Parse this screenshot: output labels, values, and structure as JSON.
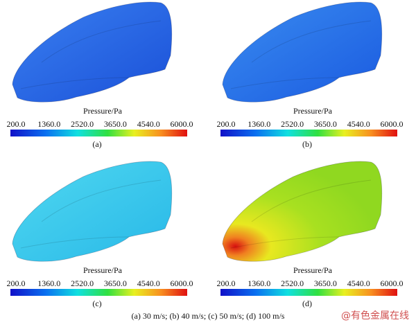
{
  "panels": [
    {
      "label": "(a)",
      "colorbar": {
        "title": "Pressure/Pa",
        "ticks": [
          "200.0",
          "1360.0",
          "2520.0",
          "3650.0",
          "4540.0",
          "6000.0"
        ]
      }
    },
    {
      "label": "(b)",
      "colorbar": {
        "title": "Pressure/Pa",
        "ticks": [
          "200.0",
          "1360.0",
          "2520.0",
          "3650.0",
          "4540.0",
          "6000.0"
        ]
      }
    },
    {
      "label": "(c)",
      "colorbar": {
        "title": "Pressure/Pa",
        "ticks": [
          "200.0",
          "1360.0",
          "2520.0",
          "3650.0",
          "4540.0",
          "6000.0"
        ]
      }
    },
    {
      "label": "(d)",
      "colorbar": {
        "title": "Pressure/Pa",
        "ticks": [
          "200.0",
          "1360.0",
          "2520.0",
          "3650.0",
          "4540.0",
          "6000.0"
        ]
      }
    }
  ],
  "caption": "(a) 30 m/s; (b) 40 m/s; (c) 50 m/s; (d) 100 m/s",
  "watermark": "@有色金属在线"
}
